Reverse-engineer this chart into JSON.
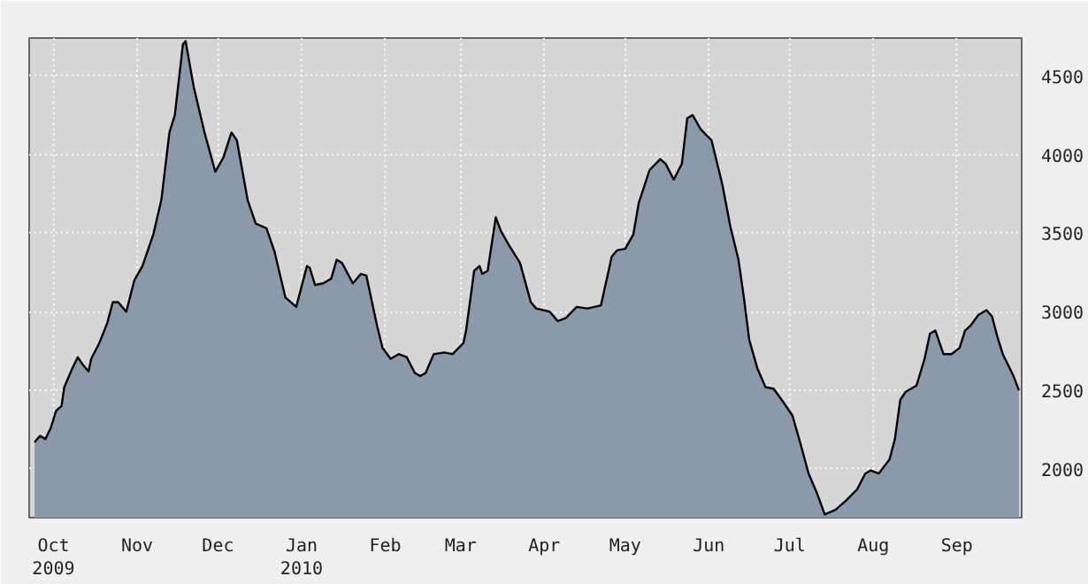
{
  "chart_data": {
    "type": "area",
    "grid": true,
    "xlim": [
      "2009-09-22",
      "2010-09-25"
    ],
    "ylim": [
      1690,
      4740
    ],
    "yticks": [
      2000,
      2500,
      3000,
      3500,
      4000,
      4500
    ],
    "xticks": [
      {
        "value": "2009-10-01",
        "label": "Oct\n2009"
      },
      {
        "value": "2009-11-01",
        "label": "Nov"
      },
      {
        "value": "2009-12-01",
        "label": "Dec"
      },
      {
        "value": "2010-01-01",
        "label": "Jan\n2010"
      },
      {
        "value": "2010-02-01",
        "label": "Feb"
      },
      {
        "value": "2010-03-01",
        "label": "Mar"
      },
      {
        "value": "2010-04-01",
        "label": "Apr"
      },
      {
        "value": "2010-05-01",
        "label": "May"
      },
      {
        "value": "2010-06-01",
        "label": "Jun"
      },
      {
        "value": "2010-07-01",
        "label": "Jul"
      },
      {
        "value": "2010-08-01",
        "label": "Aug"
      },
      {
        "value": "2010-09-01",
        "label": "Sep"
      }
    ],
    "series": [
      {
        "color": "#8a9aaa",
        "x": [
          "2009-09-24",
          "2009-09-26",
          "2009-09-28",
          "2009-09-30",
          "2009-10-02",
          "2009-10-04",
          "2009-10-05",
          "2009-10-08",
          "2009-10-10",
          "2009-10-12",
          "2009-10-14",
          "2009-10-15",
          "2009-10-18",
          "2009-10-21",
          "2009-10-23",
          "2009-10-25",
          "2009-10-28",
          "2009-10-31",
          "2009-11-03",
          "2009-11-07",
          "2009-11-10",
          "2009-11-13",
          "2009-11-15",
          "2009-11-18",
          "2009-11-19",
          "2009-11-22",
          "2009-11-26",
          "2009-11-30",
          "2009-12-03",
          "2009-12-06",
          "2009-12-08",
          "2009-12-12",
          "2009-12-15",
          "2009-12-19",
          "2009-12-22",
          "2009-12-26",
          "2009-12-30",
          "2010-01-03",
          "2010-01-04",
          "2010-01-06",
          "2010-01-09",
          "2010-01-12",
          "2010-01-14",
          "2010-01-16",
          "2010-01-20",
          "2010-01-23",
          "2010-01-25",
          "2010-01-29",
          "2010-01-31",
          "2010-02-03",
          "2010-02-06",
          "2010-02-09",
          "2010-02-12",
          "2010-02-14",
          "2010-02-16",
          "2010-02-19",
          "2010-02-23",
          "2010-02-26",
          "2010-03-02",
          "2010-03-03",
          "2010-03-06",
          "2010-03-08",
          "2010-03-09",
          "2010-03-11",
          "2010-03-14",
          "2010-03-16",
          "2010-03-19",
          "2010-03-23",
          "2010-03-27",
          "2010-03-29",
          "2010-04-03",
          "2010-04-06",
          "2010-04-09",
          "2010-04-13",
          "2010-04-17",
          "2010-04-22",
          "2010-04-26",
          "2010-04-28",
          "2010-05-01",
          "2010-05-04",
          "2010-05-06",
          "2010-05-10",
          "2010-05-14",
          "2010-05-16",
          "2010-05-19",
          "2010-05-22",
          "2010-05-24",
          "2010-05-26",
          "2010-05-29",
          "2010-06-02",
          "2010-06-06",
          "2010-06-09",
          "2010-06-12",
          "2010-06-14",
          "2010-06-16",
          "2010-06-19",
          "2010-06-22",
          "2010-06-25",
          "2010-06-28",
          "2010-07-02",
          "2010-07-05",
          "2010-07-08",
          "2010-07-11",
          "2010-07-14",
          "2010-07-18",
          "2010-07-22",
          "2010-07-26",
          "2010-07-29",
          "2010-07-31",
          "2010-08-03",
          "2010-08-07",
          "2010-08-09",
          "2010-08-11",
          "2010-08-13",
          "2010-08-17",
          "2010-08-20",
          "2010-08-22",
          "2010-08-24",
          "2010-08-27",
          "2010-08-30",
          "2010-09-02",
          "2010-09-04",
          "2010-09-06",
          "2010-09-09",
          "2010-09-12",
          "2010-09-14",
          "2010-09-16",
          "2010-09-18",
          "2010-09-22",
          "2010-09-24"
        ],
        "values": [
          2170,
          2210,
          2190,
          2260,
          2370,
          2400,
          2520,
          2640,
          2710,
          2660,
          2620,
          2700,
          2800,
          2930,
          3060,
          3060,
          3000,
          3200,
          3290,
          3490,
          3710,
          4140,
          4250,
          4700,
          4720,
          4430,
          4140,
          3890,
          3980,
          4140,
          4090,
          3710,
          3560,
          3530,
          3380,
          3090,
          3030,
          3290,
          3280,
          3170,
          3180,
          3210,
          3330,
          3310,
          3180,
          3240,
          3230,
          2910,
          2770,
          2700,
          2730,
          2710,
          2610,
          2590,
          2610,
          2730,
          2740,
          2730,
          2800,
          2880,
          3260,
          3290,
          3240,
          3260,
          3600,
          3510,
          3420,
          3310,
          3060,
          3020,
          3000,
          2940,
          2960,
          3030,
          3020,
          3040,
          3350,
          3390,
          3400,
          3490,
          3690,
          3900,
          3970,
          3940,
          3840,
          3940,
          4230,
          4250,
          4160,
          4090,
          3810,
          3540,
          3330,
          3090,
          2820,
          2640,
          2520,
          2510,
          2440,
          2340,
          2160,
          1970,
          1850,
          1710,
          1740,
          1800,
          1870,
          1970,
          1990,
          1970,
          2060,
          2190,
          2440,
          2490,
          2530,
          2700,
          2860,
          2880,
          2730,
          2730,
          2770,
          2880,
          2910,
          2980,
          3010,
          2970,
          2840,
          2730,
          2590,
          2500
        ]
      }
    ]
  }
}
